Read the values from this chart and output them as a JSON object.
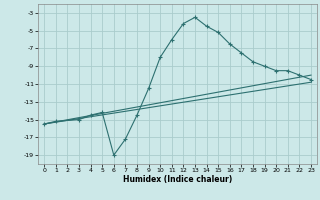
{
  "xlabel": "Humidex (Indice chaleur)",
  "background_color": "#cce8e8",
  "grid_color": "#aacccc",
  "line_color": "#2d7070",
  "xlim": [
    -0.5,
    23.5
  ],
  "ylim": [
    -20,
    -2
  ],
  "xticks": [
    0,
    1,
    2,
    3,
    4,
    5,
    6,
    7,
    8,
    9,
    10,
    11,
    12,
    13,
    14,
    15,
    16,
    17,
    18,
    19,
    20,
    21,
    22,
    23
  ],
  "yticks": [
    -19,
    -17,
    -15,
    -13,
    -11,
    -9,
    -7,
    -5,
    -3
  ],
  "line1_x": [
    0,
    1,
    3,
    4,
    5,
    6,
    7,
    8,
    9,
    10,
    11,
    12,
    13,
    14,
    15,
    16,
    17,
    18,
    19,
    20,
    21,
    22,
    23
  ],
  "line1_y": [
    -15.5,
    -15.2,
    -15.0,
    -14.5,
    -14.2,
    -19.0,
    -17.2,
    -14.5,
    -11.5,
    -8.0,
    -6.0,
    -4.2,
    -3.5,
    -4.5,
    -5.2,
    -6.5,
    -7.5,
    -8.5,
    -9.0,
    -9.5,
    -9.5,
    -10.0,
    -10.5
  ],
  "line2_x": [
    0,
    23
  ],
  "line2_y": [
    -15.5,
    -10.0
  ],
  "line3_x": [
    0,
    23
  ],
  "line3_y": [
    -15.5,
    -10.8
  ]
}
